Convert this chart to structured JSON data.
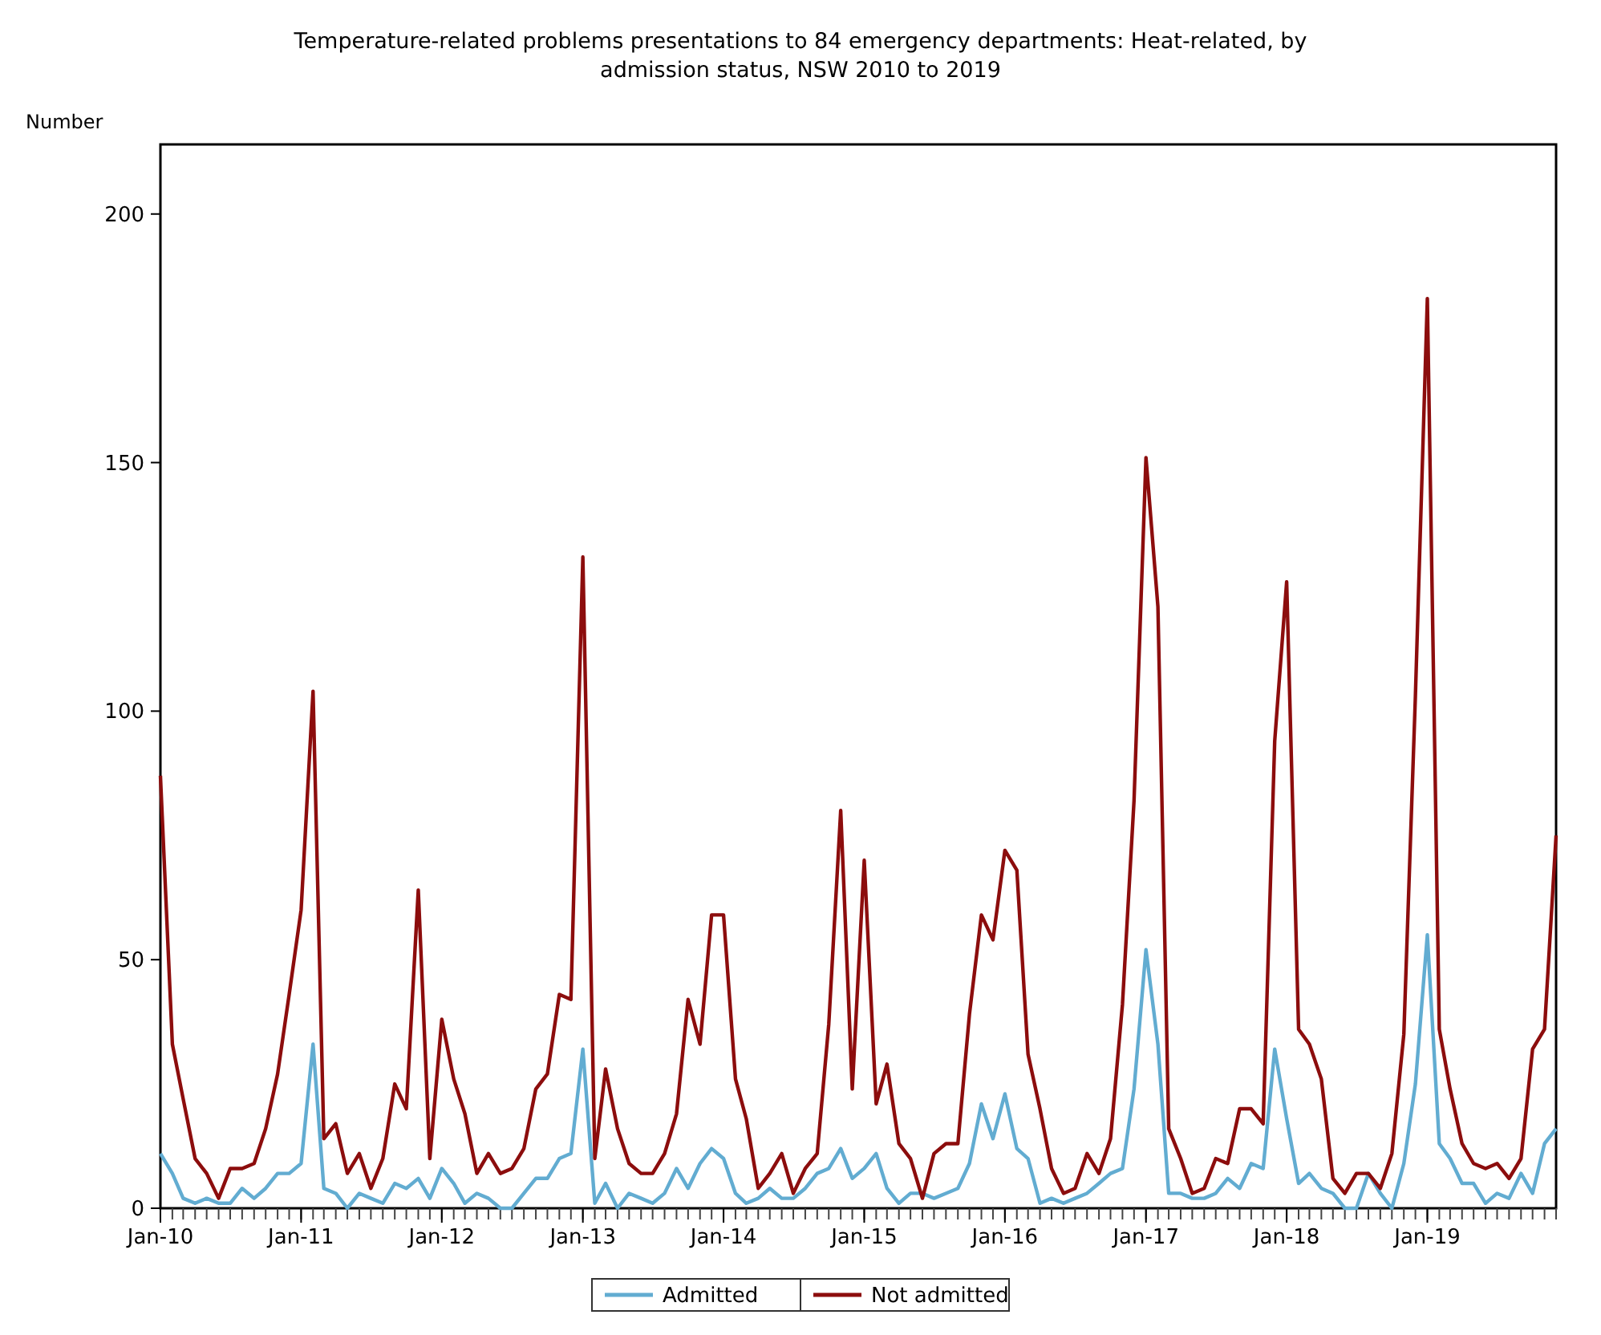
{
  "chart_data": {
    "type": "line",
    "title": "Temperature-related problems presentations to 84 emergency departments: Heat-related, by admission status, NSW 2010 to 2019",
    "ylabel": "Number",
    "x": [
      "2010-01",
      "2010-02",
      "2010-03",
      "2010-04",
      "2010-05",
      "2010-06",
      "2010-07",
      "2010-08",
      "2010-09",
      "2010-10",
      "2010-11",
      "2010-12",
      "2011-01",
      "2011-02",
      "2011-03",
      "2011-04",
      "2011-05",
      "2011-06",
      "2011-07",
      "2011-08",
      "2011-09",
      "2011-10",
      "2011-11",
      "2011-12",
      "2012-01",
      "2012-02",
      "2012-03",
      "2012-04",
      "2012-05",
      "2012-06",
      "2012-07",
      "2012-08",
      "2012-09",
      "2012-10",
      "2012-11",
      "2012-12",
      "2013-01",
      "2013-02",
      "2013-03",
      "2013-04",
      "2013-05",
      "2013-06",
      "2013-07",
      "2013-08",
      "2013-09",
      "2013-10",
      "2013-11",
      "2013-12",
      "2014-01",
      "2014-02",
      "2014-03",
      "2014-04",
      "2014-05",
      "2014-06",
      "2014-07",
      "2014-08",
      "2014-09",
      "2014-10",
      "2014-11",
      "2014-12",
      "2015-01",
      "2015-02",
      "2015-03",
      "2015-04",
      "2015-05",
      "2015-06",
      "2015-07",
      "2015-08",
      "2015-09",
      "2015-10",
      "2015-11",
      "2015-12",
      "2016-01",
      "2016-02",
      "2016-03",
      "2016-04",
      "2016-05",
      "2016-06",
      "2016-07",
      "2016-08",
      "2016-09",
      "2016-10",
      "2016-11",
      "2016-12",
      "2017-01",
      "2017-02",
      "2017-03",
      "2017-04",
      "2017-05",
      "2017-06",
      "2017-07",
      "2017-08",
      "2017-09",
      "2017-10",
      "2017-11",
      "2017-12",
      "2018-01",
      "2018-02",
      "2018-03",
      "2018-04",
      "2018-05",
      "2018-06",
      "2018-07",
      "2018-08",
      "2018-09",
      "2018-10",
      "2018-11",
      "2018-12",
      "2019-01",
      "2019-02",
      "2019-03",
      "2019-04",
      "2019-05",
      "2019-06",
      "2019-07",
      "2019-08",
      "2019-09",
      "2019-10",
      "2019-11",
      "2019-12"
    ],
    "series": [
      {
        "name": "Admitted",
        "color": "#62acd1",
        "values": [
          11,
          7,
          2,
          1,
          2,
          1,
          1,
          4,
          2,
          4,
          7,
          7,
          9,
          33,
          4,
          3,
          0,
          3,
          2,
          1,
          5,
          4,
          6,
          2,
          8,
          5,
          1,
          3,
          2,
          0,
          0,
          3,
          6,
          6,
          10,
          11,
          32,
          1,
          5,
          0,
          3,
          2,
          1,
          3,
          8,
          4,
          9,
          12,
          10,
          3,
          1,
          2,
          4,
          2,
          2,
          4,
          7,
          8,
          12,
          6,
          8,
          11,
          4,
          1,
          3,
          3,
          2,
          3,
          4,
          9,
          21,
          14,
          23,
          12,
          10,
          1,
          2,
          1,
          2,
          3,
          5,
          7,
          8,
          24,
          52,
          33,
          3,
          3,
          2,
          2,
          3,
          6,
          4,
          9,
          8,
          32,
          18,
          5,
          7,
          4,
          3,
          0,
          0,
          7,
          3,
          0,
          9,
          25,
          55,
          13,
          10,
          5,
          5,
          1,
          3,
          2,
          7,
          3,
          13,
          16
        ]
      },
      {
        "name": "Not admitted",
        "color": "#8c0d0d",
        "values": [
          87,
          33,
          22,
          10,
          7,
          2,
          8,
          8,
          9,
          16,
          27,
          43,
          60,
          104,
          14,
          17,
          7,
          11,
          4,
          10,
          25,
          20,
          64,
          10,
          38,
          26,
          19,
          7,
          11,
          7,
          8,
          12,
          24,
          27,
          43,
          42,
          131,
          10,
          28,
          16,
          9,
          7,
          7,
          11,
          19,
          42,
          33,
          59,
          59,
          26,
          18,
          4,
          7,
          11,
          3,
          8,
          11,
          37,
          80,
          24,
          70,
          21,
          29,
          13,
          10,
          2,
          11,
          13,
          13,
          39,
          59,
          54,
          72,
          68,
          31,
          20,
          8,
          3,
          4,
          11,
          7,
          14,
          41,
          82,
          151,
          121,
          16,
          10,
          3,
          4,
          10,
          9,
          20,
          20,
          17,
          94,
          126,
          36,
          33,
          26,
          6,
          3,
          7,
          7,
          4,
          11,
          35,
          103,
          183,
          36,
          24,
          13,
          9,
          8,
          9,
          6,
          10,
          32,
          36,
          75
        ]
      }
    ],
    "xlim": [
      "2010-01",
      "2019-12"
    ],
    "xticks": [
      {
        "value": "2010-01",
        "label": "Jan-10"
      },
      {
        "value": "2011-01",
        "label": "Jan-11"
      },
      {
        "value": "2012-01",
        "label": "Jan-12"
      },
      {
        "value": "2013-01",
        "label": "Jan-13"
      },
      {
        "value": "2014-01",
        "label": "Jan-14"
      },
      {
        "value": "2015-01",
        "label": "Jan-15"
      },
      {
        "value": "2016-01",
        "label": "Jan-16"
      },
      {
        "value": "2017-01",
        "label": "Jan-17"
      },
      {
        "value": "2018-01",
        "label": "Jan-18"
      },
      {
        "value": "2019-01",
        "label": "Jan-19"
      }
    ],
    "ylim": [
      0,
      214
    ],
    "yticks": [
      0,
      50,
      100,
      150,
      200
    ],
    "grid": false,
    "legend": "bottom",
    "marker": "none",
    "line_style": "solid"
  }
}
